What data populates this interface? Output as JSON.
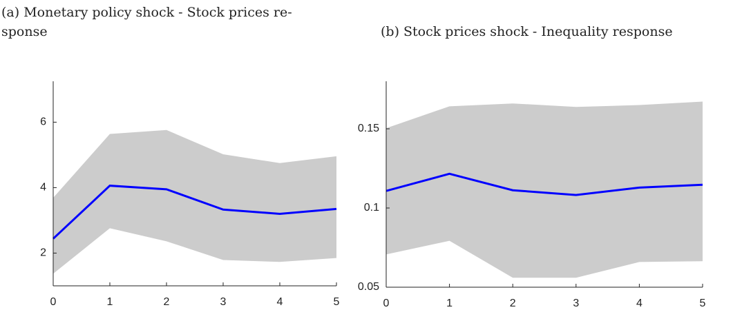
{
  "chart_data": [
    {
      "type": "line-band",
      "title": [
        "(a) Monetary policy shock - Stock prices re-",
        "sponse"
      ],
      "x": [
        0,
        1,
        2,
        3,
        4,
        5
      ],
      "xlim": [
        0,
        5
      ],
      "xticks": [
        0,
        1,
        2,
        3,
        4,
        5
      ],
      "ylim": [
        1,
        7.25
      ],
      "yticks": [
        2,
        4,
        6
      ],
      "line": {
        "color": "#0000ff",
        "values": [
          2.44,
          4.06,
          3.95,
          3.33,
          3.2,
          3.35
        ]
      },
      "band": {
        "color": "#cccccc",
        "upper": [
          3.69,
          5.64,
          5.76,
          5.02,
          4.75,
          4.96
        ],
        "lower": [
          1.37,
          2.76,
          2.36,
          1.79,
          1.73,
          1.85
        ]
      }
    },
    {
      "type": "line-band",
      "title": [
        "(b) Stock prices shock - Inequality response"
      ],
      "x": [
        0,
        1,
        2,
        3,
        4,
        5
      ],
      "xlim": [
        0,
        5
      ],
      "xticks": [
        0,
        1,
        2,
        3,
        4,
        5
      ],
      "ylim": [
        0.05,
        0.18
      ],
      "yticks": [
        0.05,
        0.1,
        0.15
      ],
      "line": {
        "color": "#0000ff",
        "values": [
          0.1108,
          0.1216,
          0.1112,
          0.1082,
          0.1129,
          0.1147
        ]
      },
      "band": {
        "color": "#cccccc",
        "upper": [
          0.1504,
          0.1642,
          0.166,
          0.1638,
          0.165,
          0.1672
        ],
        "lower": [
          0.0707,
          0.0793,
          0.056,
          0.056,
          0.0659,
          0.0664
        ]
      }
    }
  ]
}
